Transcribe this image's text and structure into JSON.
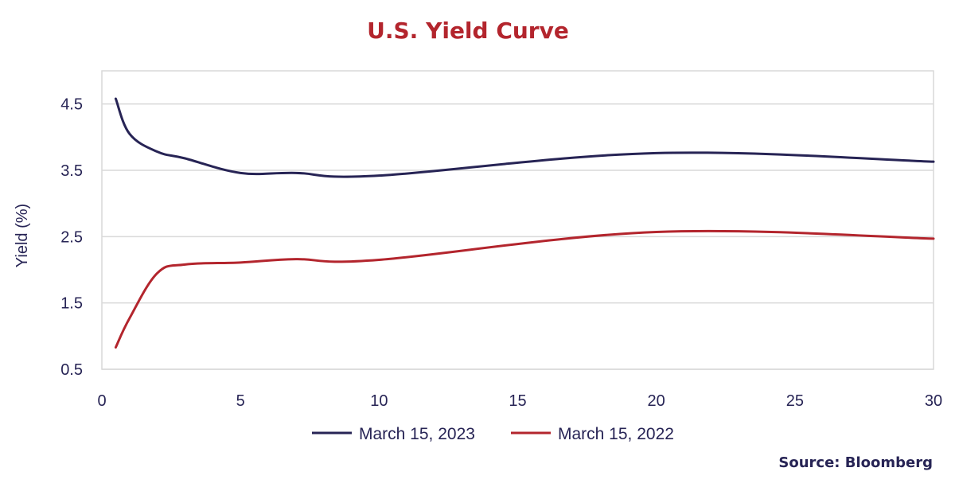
{
  "chart_data": {
    "type": "line",
    "title": "U.S. Yield Curve",
    "xlabel": "",
    "ylabel": "Yield (%)",
    "xlim": [
      0,
      30
    ],
    "ylim": [
      0.5,
      5.0
    ],
    "x_ticks": [
      0,
      5,
      10,
      15,
      20,
      25,
      30
    ],
    "y_ticks": [
      0.5,
      1.5,
      2.5,
      3.5,
      4.5
    ],
    "grid": true,
    "legend_position": "bottom",
    "series": [
      {
        "name": "March 15, 2023",
        "color": "#272455",
        "x": [
          0.5,
          1,
          2,
          3,
          5,
          7,
          10,
          20,
          30
        ],
        "y": [
          4.58,
          4.05,
          3.78,
          3.68,
          3.46,
          3.46,
          3.42,
          3.76,
          3.63
        ]
      },
      {
        "name": "March 15, 2022",
        "color": "#b3252d",
        "x": [
          0.5,
          1,
          2,
          3,
          5,
          7,
          10,
          20,
          30
        ],
        "y": [
          0.83,
          1.27,
          1.95,
          2.08,
          2.11,
          2.16,
          2.15,
          2.57,
          2.47
        ]
      }
    ]
  },
  "source": "Source: Bloomberg"
}
